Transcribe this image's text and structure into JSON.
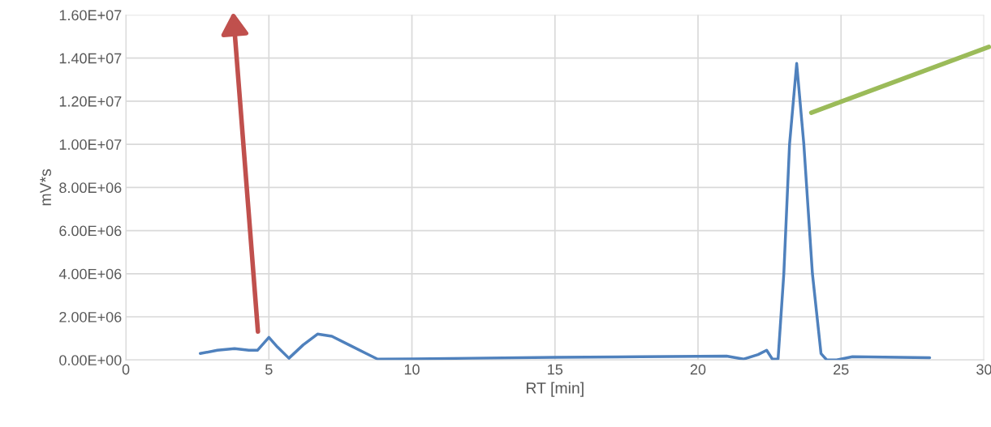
{
  "chart_data": {
    "type": "line",
    "xlabel": "RT [min]",
    "ylabel": "mV*s",
    "xlim": [
      0,
      30
    ],
    "xticks": [
      0,
      5,
      10,
      15,
      20,
      25,
      30
    ],
    "ylim": [
      0,
      16000000
    ],
    "yticks": [
      {
        "value": 0,
        "label": "0.00E+00"
      },
      {
        "value": 2000000,
        "label": "2.00E+06"
      },
      {
        "value": 4000000,
        "label": "4.00E+06"
      },
      {
        "value": 6000000,
        "label": "6.00E+06"
      },
      {
        "value": 8000000,
        "label": "8.00E+06"
      },
      {
        "value": 10000000,
        "label": "1.00E+07"
      },
      {
        "value": 12000000,
        "label": "1.20E+07"
      },
      {
        "value": 14000000,
        "label": "1.40E+07"
      },
      {
        "value": 16000000,
        "label": "1.60E+07"
      }
    ],
    "grid": true,
    "marker": "none",
    "line_style": "solid",
    "series": [
      {
        "color": "#4f81bd",
        "x": [
          2.6,
          3.2,
          3.8,
          4.3,
          4.6,
          5.0,
          5.3,
          5.7,
          6.2,
          6.7,
          7.2,
          7.8,
          8.4,
          8.8,
          10,
          12,
          15,
          18,
          21,
          21.6,
          22.1,
          22.4,
          22.6,
          22.8,
          23.0,
          23.2,
          23.45,
          23.7,
          24.0,
          24.3,
          24.5,
          24.85,
          25.4,
          26.5,
          28.1
        ],
        "values": [
          300000,
          450000,
          530000,
          450000,
          450000,
          1050000,
          600000,
          80000,
          700000,
          1200000,
          1100000,
          700000,
          300000,
          40000,
          50000,
          80000,
          120000,
          150000,
          180000,
          40000,
          250000,
          450000,
          40000,
          50000,
          4000000,
          10000000,
          13750000,
          10000000,
          4000000,
          300000,
          0,
          0,
          150000,
          130000,
          100000
        ]
      }
    ]
  }
}
